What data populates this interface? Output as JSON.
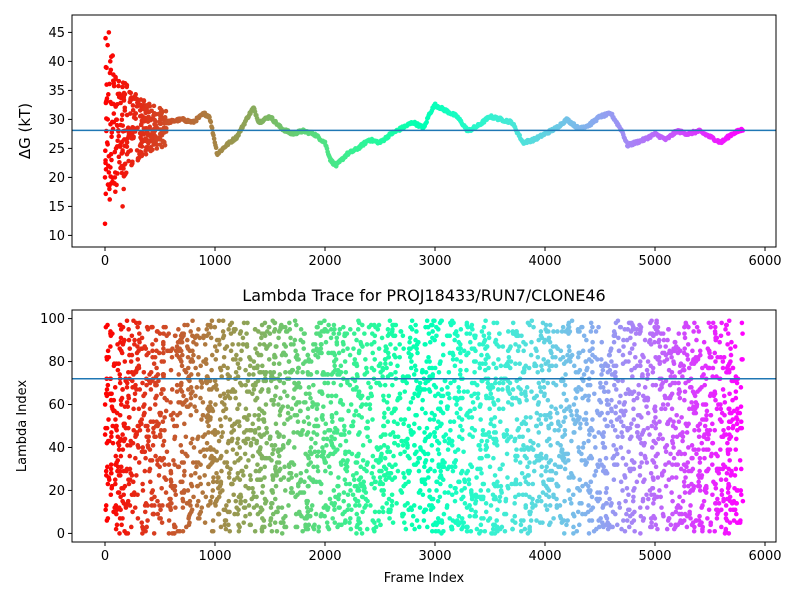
{
  "chart_data": [
    {
      "type": "scatter",
      "title": "",
      "xlabel": "",
      "ylabel": "ΔG (kT)",
      "xlim": [
        -300,
        6100
      ],
      "ylim": [
        8,
        48
      ],
      "xticks": [
        0,
        1000,
        2000,
        3000,
        4000,
        5000,
        6000
      ],
      "yticks": [
        10,
        15,
        20,
        25,
        30,
        35,
        40,
        45
      ],
      "hline": 28.1,
      "hline_color": "#1f77b4",
      "colormap": "rainbow (red at start of frames → violet at end)",
      "frame_count": 5800,
      "early_points": [
        [
          0,
          12
        ],
        [
          0,
          20
        ],
        [
          5,
          44
        ],
        [
          8,
          39
        ],
        [
          10,
          33
        ],
        [
          12,
          28
        ],
        [
          15,
          36
        ],
        [
          20,
          26
        ],
        [
          25,
          30
        ],
        [
          30,
          22
        ],
        [
          35,
          45
        ],
        [
          40,
          18
        ],
        [
          45,
          38
        ],
        [
          50,
          33
        ],
        [
          55,
          24
        ],
        [
          60,
          27
        ],
        [
          70,
          41
        ],
        [
          80,
          31
        ],
        [
          90,
          20
        ],
        [
          100,
          25
        ],
        [
          110,
          29
        ],
        [
          130,
          34
        ],
        [
          150,
          26
        ],
        [
          160,
          15
        ],
        [
          170,
          18
        ],
        [
          180,
          32
        ],
        [
          200,
          24
        ],
        [
          230,
          31
        ],
        [
          260,
          27
        ],
        [
          300,
          33
        ],
        [
          340,
          24
        ],
        [
          380,
          30
        ],
        [
          420,
          27
        ],
        [
          460,
          29
        ],
        [
          500,
          31
        ]
      ],
      "trace_points": [
        [
          560,
          29.5
        ],
        [
          700,
          30.0
        ],
        [
          800,
          29.5
        ],
        [
          900,
          31.0
        ],
        [
          950,
          30.5
        ],
        [
          1000,
          26.0
        ],
        [
          1020,
          24.0
        ],
        [
          1100,
          25.5
        ],
        [
          1200,
          27.0
        ],
        [
          1300,
          30.5
        ],
        [
          1350,
          32.0
        ],
        [
          1400,
          29.5
        ],
        [
          1500,
          30.5
        ],
        [
          1600,
          28.5
        ],
        [
          1700,
          27.5
        ],
        [
          1800,
          28.0
        ],
        [
          1900,
          27.5
        ],
        [
          2000,
          26.0
        ],
        [
          2050,
          23.0
        ],
        [
          2100,
          22.0
        ],
        [
          2200,
          24.0
        ],
        [
          2300,
          25.0
        ],
        [
          2400,
          26.5
        ],
        [
          2500,
          26.0
        ],
        [
          2600,
          27.5
        ],
        [
          2700,
          28.5
        ],
        [
          2800,
          29.5
        ],
        [
          2900,
          28.5
        ],
        [
          2950,
          31.0
        ],
        [
          3000,
          32.5
        ],
        [
          3100,
          31.5
        ],
        [
          3200,
          30.5
        ],
        [
          3300,
          28.0
        ],
        [
          3400,
          29.0
        ],
        [
          3500,
          30.5
        ],
        [
          3600,
          30.0
        ],
        [
          3700,
          29.5
        ],
        [
          3800,
          26.0
        ],
        [
          3900,
          26.5
        ],
        [
          4000,
          27.5
        ],
        [
          4100,
          28.5
        ],
        [
          4200,
          30.0
        ],
        [
          4300,
          28.5
        ],
        [
          4400,
          29.0
        ],
        [
          4500,
          30.5
        ],
        [
          4600,
          31.0
        ],
        [
          4700,
          28.0
        ],
        [
          4750,
          25.5
        ],
        [
          4900,
          26.5
        ],
        [
          5000,
          27.5
        ],
        [
          5100,
          26.5
        ],
        [
          5200,
          28.0
        ],
        [
          5300,
          27.5
        ],
        [
          5400,
          28.0
        ],
        [
          5500,
          27.0
        ],
        [
          5600,
          26.0
        ],
        [
          5700,
          27.5
        ],
        [
          5800,
          28.3
        ]
      ]
    },
    {
      "type": "scatter",
      "title": "Lambda Trace for PROJ18433/RUN7/CLONE46",
      "xlabel": "Frame Index",
      "ylabel": "Lambda Index",
      "xlim": [
        -300,
        6100
      ],
      "ylim": [
        -4,
        104
      ],
      "xticks": [
        0,
        1000,
        2000,
        3000,
        4000,
        5000,
        6000
      ],
      "yticks": [
        0,
        20,
        40,
        60,
        80,
        100
      ],
      "hline": 72,
      "hline_color": "#1f77b4",
      "colormap": "rainbow (red at start of frames → violet at end)",
      "frame_count": 5800,
      "y_range_of_points": [
        0,
        99
      ],
      "point_density": "dense scatter of lambda indices 0–99 across all frames"
    }
  ]
}
